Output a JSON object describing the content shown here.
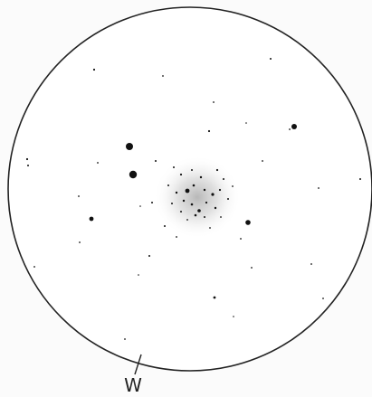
{
  "label": "W"
}
